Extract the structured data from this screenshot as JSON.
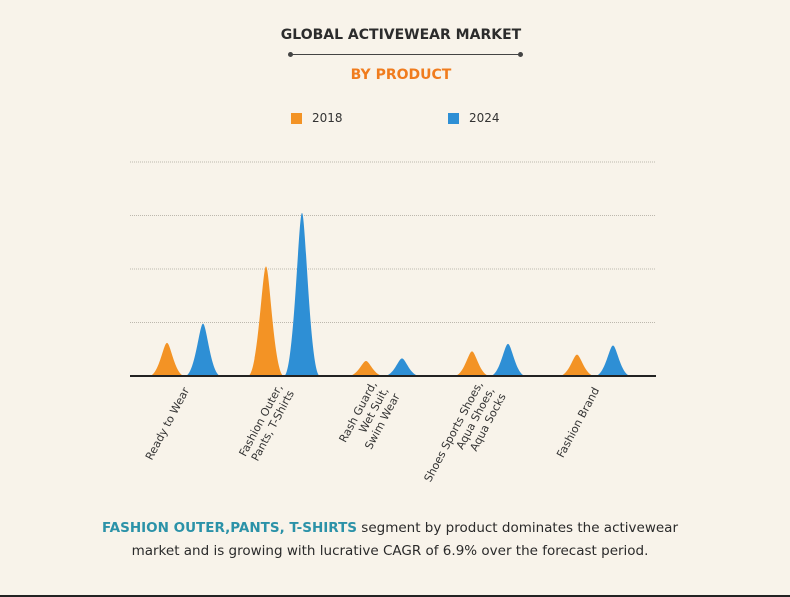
{
  "title": "GLOBAL ACTIVEWEAR MARKET",
  "subtitle": "BY PRODUCT",
  "colors": {
    "series_2018": "#f39325",
    "series_2024": "#2e8fd5",
    "subtitle": "#f07c1e",
    "highlight": "#2b92a8",
    "grid": "#bdb8ae",
    "axis": "#222222"
  },
  "caption": {
    "highlight": "FASHION OUTER,PANTS, T-SHIRTS",
    "line1_rest": " segment by product dominates the activewear",
    "line2": "market and is growing with lucrative CAGR of 6.9% over the forecast period."
  },
  "chart_data": {
    "type": "area",
    "categories": [
      [
        "Ready to Wear"
      ],
      [
        "Fashion Outer,",
        "Pants, T-Shirts"
      ],
      [
        "Rash Guard,",
        "Wet Suit,",
        "Swim Wear"
      ],
      [
        "Shoes Sports Shoes,",
        "Aqua Shoes,",
        "Aqua Socks"
      ],
      [
        "Fashion Brand"
      ]
    ],
    "series": [
      {
        "name": "2018",
        "values": [
          0.62,
          2.05,
          0.28,
          0.46,
          0.4
        ]
      },
      {
        "name": "2024",
        "values": [
          0.98,
          3.05,
          0.33,
          0.6,
          0.57
        ]
      }
    ],
    "ylim": [
      0,
      4
    ],
    "grid": true,
    "legend": "top"
  }
}
